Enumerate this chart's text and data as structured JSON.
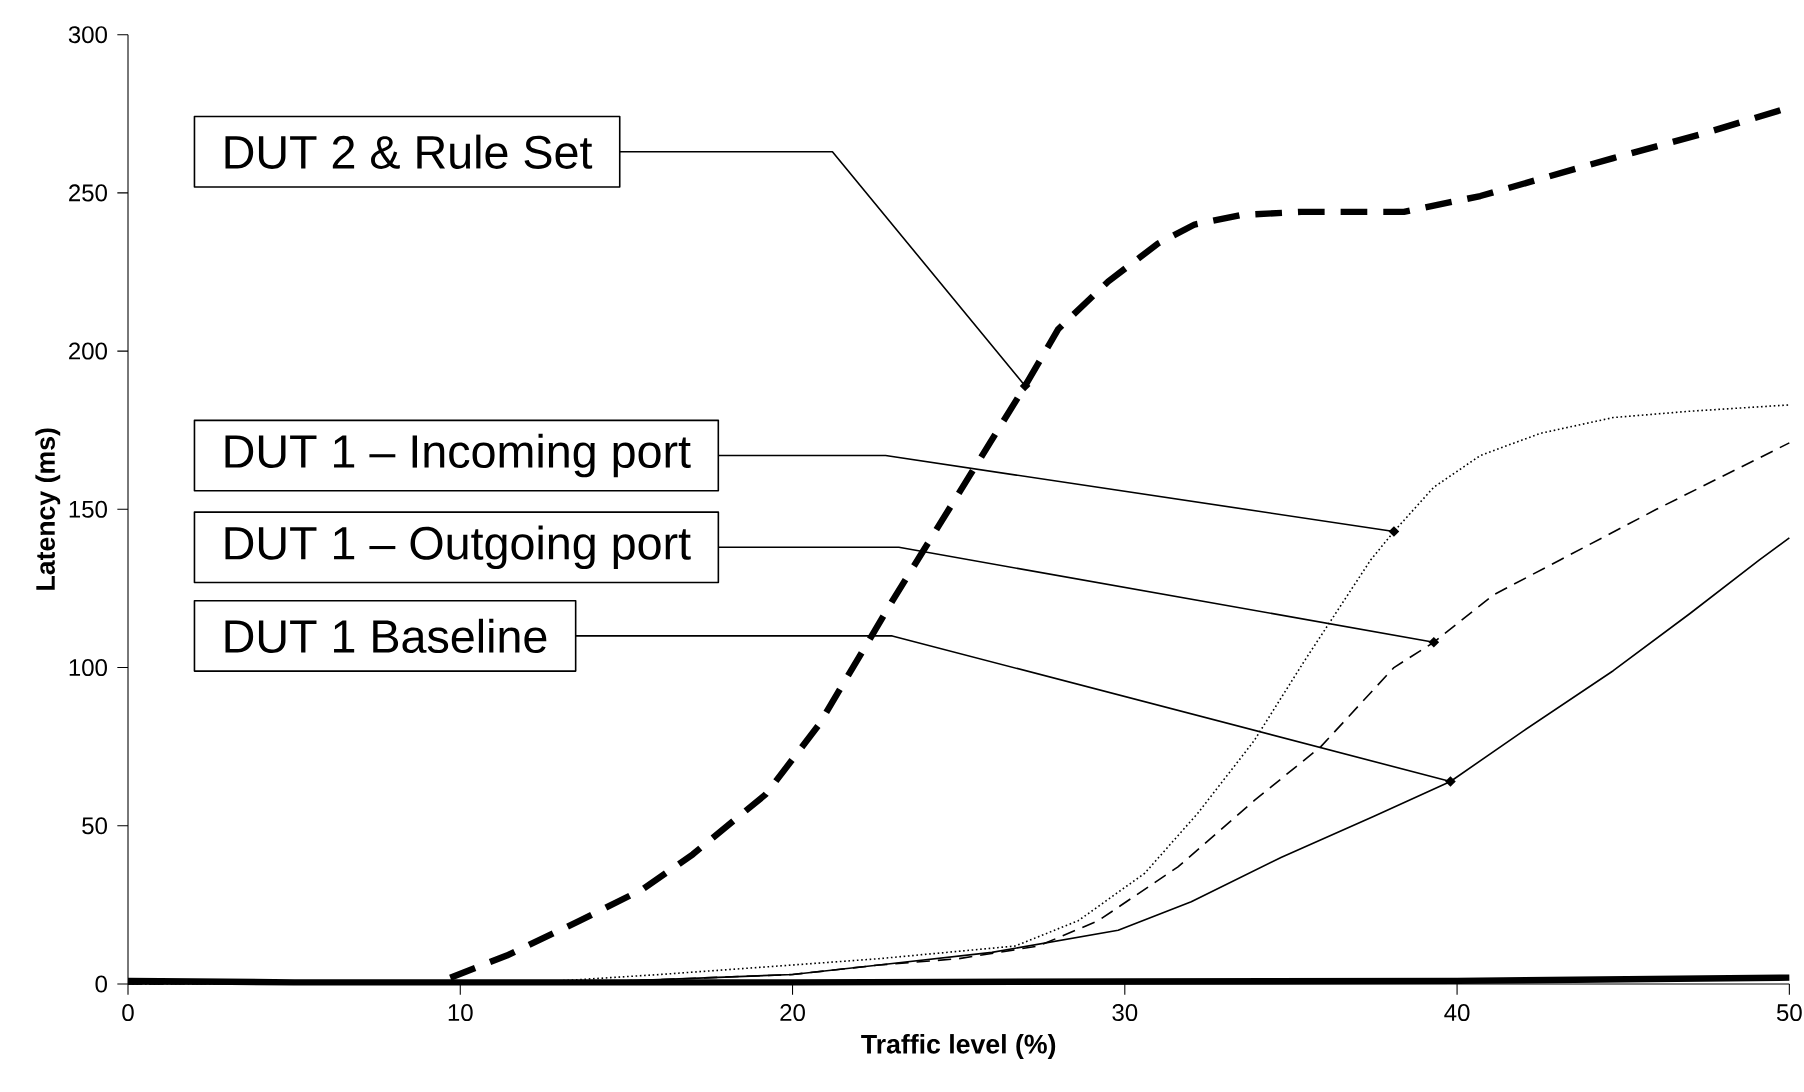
{
  "chart_data": {
    "type": "line",
    "xlabel": "Traffic level (%)",
    "ylabel": "Latency (ms)",
    "xlim": [
      0,
      50
    ],
    "xticks": [
      0,
      10,
      20,
      30,
      40,
      50
    ],
    "ylim": [
      0,
      300
    ],
    "yticks": [
      0,
      50,
      100,
      150,
      200,
      250,
      300
    ],
    "series": [
      {
        "color": "#000000",
        "line_style": "dashed",
        "x": [
          9.7,
          11.4,
          13.6,
          15.5,
          17,
          19.2,
          20.8,
          23,
          25,
          27,
          28,
          29.5,
          31,
          32.1,
          33.5,
          35.3,
          38.4,
          40.7,
          44.7,
          47.5,
          50
        ],
        "values": [
          2,
          9,
          20,
          30,
          41,
          60,
          82,
          121,
          155,
          189,
          207,
          222,
          234,
          240,
          243,
          244,
          244,
          249,
          261,
          269,
          277
        ]
      },
      {
        "color": "#000000",
        "line_style": "dotted",
        "x": [
          0,
          10,
          13,
          16,
          20,
          22.6,
          26.7,
          28.6,
          30.6,
          32.2,
          33.9,
          35.4,
          37.4,
          38.1,
          39.3,
          40.7,
          42.5,
          44.7,
          47,
          50
        ],
        "values": [
          0,
          0.5,
          1,
          3,
          6,
          8,
          12,
          20,
          35,
          54,
          77,
          102,
          134,
          143,
          157,
          167,
          174,
          179,
          181,
          183
        ]
      },
      {
        "color": "#000000",
        "line_style": "dashed",
        "x": [
          0,
          10,
          15,
          20,
          22.6,
          25,
          27.4,
          29.2,
          31.6,
          33.9,
          35.9,
          38.1,
          39.3,
          41.1,
          43.1,
          46,
          50
        ],
        "values": [
          0,
          0.5,
          1,
          3,
          6,
          8,
          12,
          20,
          37,
          58,
          75,
          100,
          108,
          123,
          134,
          150,
          171
        ]
      },
      {
        "color": "#000000",
        "line_style": "solid",
        "x": [
          0,
          10,
          15,
          20,
          22.6,
          26,
          29.8,
          32,
          34.7,
          37.5,
          39.8,
          42,
          44.7,
          47,
          49.1,
          50
        ],
        "values": [
          0,
          0.5,
          1,
          3,
          6,
          10,
          17,
          26,
          40,
          53,
          64,
          80,
          99,
          117,
          134,
          141
        ]
      },
      {
        "color": "#000000",
        "line_style": "solid",
        "x": [
          0,
          5,
          10,
          20,
          30,
          40,
          50
        ],
        "values": [
          1,
          0.5,
          0.5,
          0.5,
          0.8,
          1,
          2
        ]
      }
    ],
    "annotations": [
      {
        "text": "DUT 2 & Rule Set",
        "x": 27,
        "y": 189
      },
      {
        "text": "DUT 1 – Incoming port",
        "x": 38.1,
        "y": 143
      },
      {
        "text": "DUT 1 – Outgoing port",
        "x": 39.3,
        "y": 108
      },
      {
        "text": "DUT 1 Baseline",
        "x": 39.8,
        "y": 64
      }
    ]
  }
}
